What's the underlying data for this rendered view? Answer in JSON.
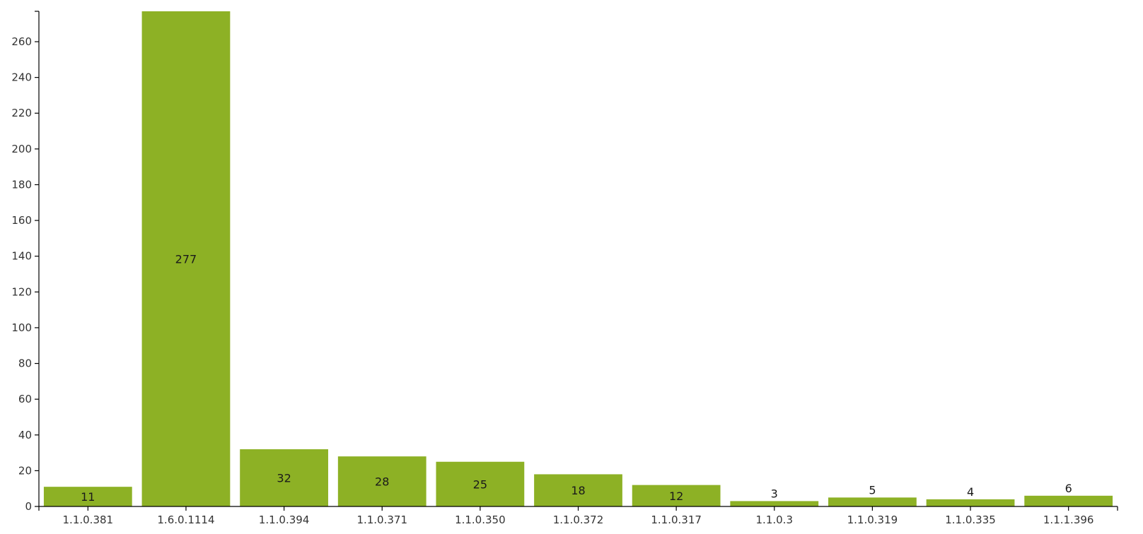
{
  "chart_data": {
    "type": "bar",
    "categories": [
      "1.1.0.381",
      "1.6.0.1114",
      "1.1.0.394",
      "1.1.0.371",
      "1.1.0.350",
      "1.1.0.372",
      "1.1.0.317",
      "1.1.0.3",
      "1.1.0.319",
      "1.1.0.335",
      "1.1.1.396"
    ],
    "values": [
      11,
      277,
      32,
      28,
      25,
      18,
      12,
      3,
      5,
      4,
      6
    ],
    "data_labels": [
      "11",
      "277",
      "32",
      "28",
      "25",
      "18",
      "12",
      "3",
      "5",
      "4",
      "6"
    ],
    "yticks": [
      0,
      20,
      40,
      60,
      80,
      100,
      120,
      140,
      160,
      180,
      200,
      220,
      240,
      260
    ],
    "ytick_labels": [
      "0",
      "20",
      "40",
      "60",
      "80",
      "100",
      "120",
      "140",
      "160",
      "180",
      "200",
      "220",
      "240",
      "260"
    ],
    "ylim": [
      0,
      277
    ],
    "title": "",
    "xlabel": "",
    "ylabel": "",
    "grid": false,
    "legend": "none",
    "colors": {
      "bar": "#8db125",
      "axis": "#000000",
      "tick_text": "#333333",
      "label_text": "#1a1a1a"
    }
  }
}
